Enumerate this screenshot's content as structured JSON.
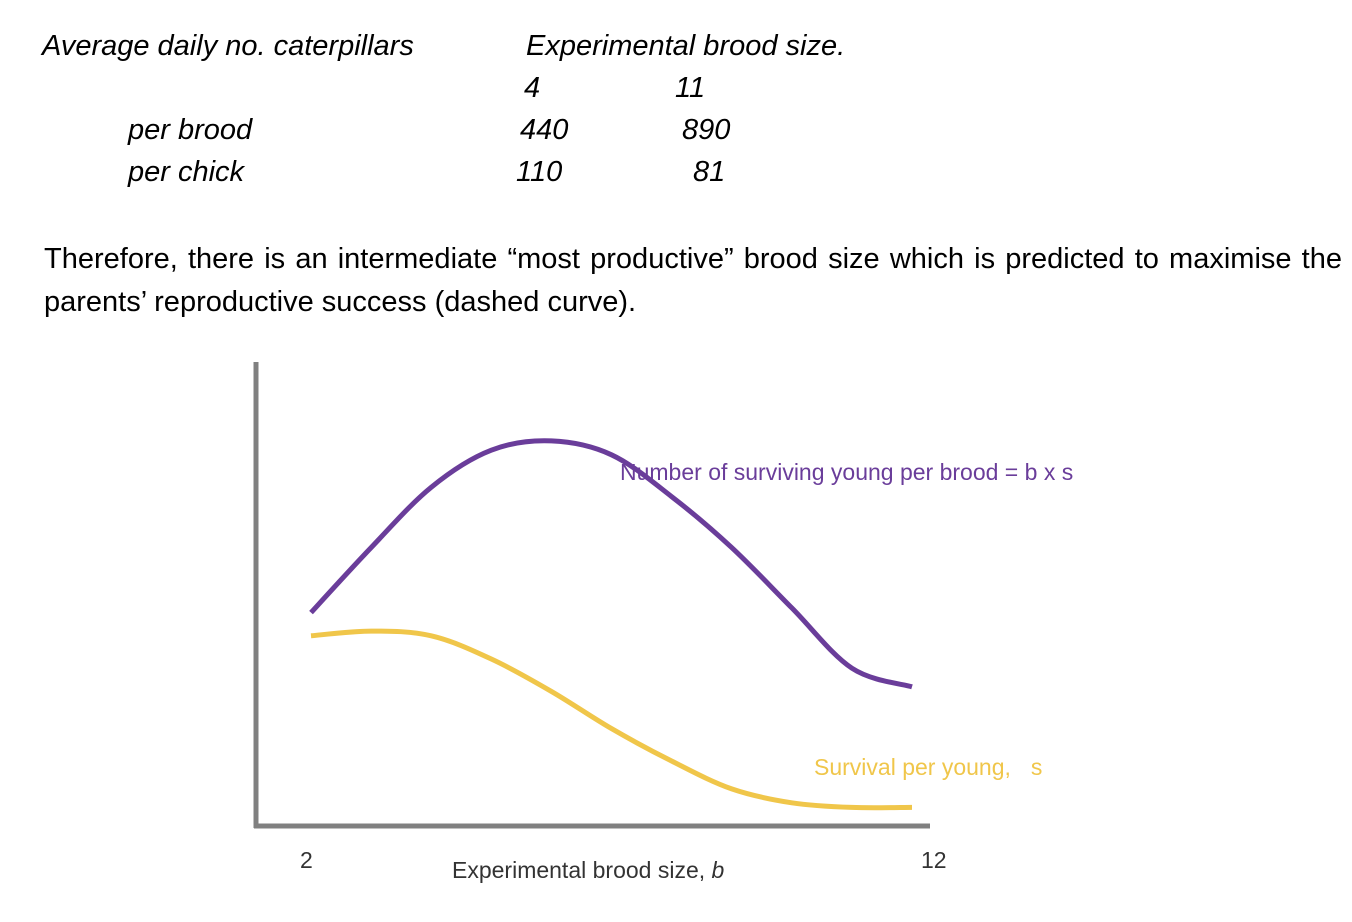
{
  "table": {
    "title": "Average daily no. caterpillars",
    "col_header": "Experimental brood size.",
    "columns": [
      "4",
      "11"
    ],
    "rows": [
      {
        "label": "per brood",
        "values": [
          "440",
          "890"
        ]
      },
      {
        "label": "per chick",
        "values": [
          "110",
          "81"
        ]
      }
    ]
  },
  "paragraph": "Therefore, there is an intermediate “most productive” brood size which is predicted to maximise the parents’ reproductive success (dashed curve).",
  "chart_data": {
    "type": "line",
    "xlabel": "Experimental brood size,",
    "xlabel_var": "b",
    "xlim": [
      2,
      12
    ],
    "ylim": [
      0,
      1
    ],
    "x_ticks": [
      "2",
      "12"
    ],
    "grid": false,
    "series": [
      {
        "name": "Number of surviving young per brood = b x s",
        "color": "#6a3d9a",
        "x": [
          2,
          3,
          4,
          5,
          6,
          7,
          8,
          9,
          10,
          11,
          12
        ],
        "y": [
          0.46,
          0.6,
          0.73,
          0.81,
          0.83,
          0.8,
          0.71,
          0.6,
          0.47,
          0.34,
          0.3
        ]
      },
      {
        "name": "Survival per young,",
        "name_var": "s",
        "color": "#f0c64a",
        "x": [
          2,
          3,
          4,
          5,
          6,
          7,
          8,
          9,
          10,
          11,
          12
        ],
        "y": [
          0.41,
          0.42,
          0.41,
          0.36,
          0.29,
          0.21,
          0.14,
          0.08,
          0.05,
          0.04,
          0.04
        ]
      }
    ]
  }
}
